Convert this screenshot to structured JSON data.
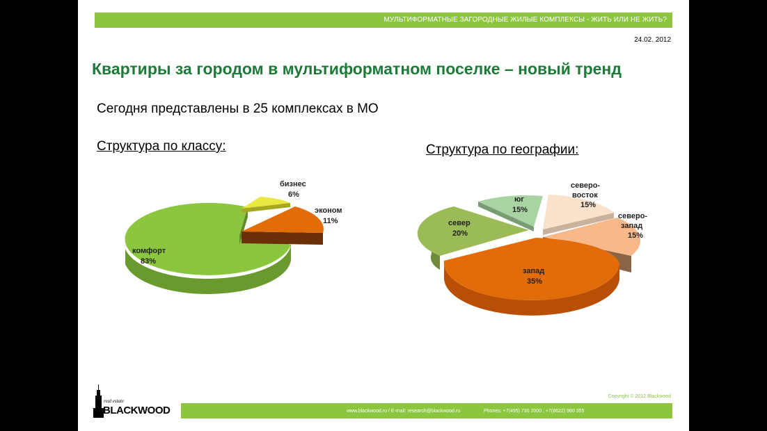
{
  "header": {
    "bar_text": "МУЛЬТИФОРМАТНЫЕ ЗАГОРОДНЫЕ ЖИЛЫЕ КОМПЛЕКСЫ  - ЖИТЬ ИЛИ НЕ ЖИТЬ?",
    "date": "24.02. 2012"
  },
  "title": "Квартиры за городом  в мультиформатном поселке – новый тренд",
  "subtitle": "Сегодня представлены в 25 комплексах в МО",
  "section_class": "Структура по классу:",
  "section_geo": "Структура по географии:",
  "chart_data": [
    {
      "type": "pie",
      "title": "Структура по классу:",
      "slices": [
        {
          "label": "комфорт",
          "value": 83,
          "value_label": "83%",
          "color": "#8cc63f"
        },
        {
          "label": "бизнес",
          "value": 6,
          "value_label": "6%",
          "color": "#e8e840"
        },
        {
          "label": "эконом",
          "value": 11,
          "value_label": "11%",
          "color": "#e36c0a"
        }
      ]
    },
    {
      "type": "pie",
      "title": "Структура по географии:",
      "slices": [
        {
          "label": "юг",
          "value": 15,
          "value_label": "15%",
          "color": "#a9d3a3"
        },
        {
          "label": "северо-восток",
          "value": 15,
          "value_label": "15%",
          "color": "#fbe2cb"
        },
        {
          "label": "северо-запад",
          "value": 15,
          "value_label": "15%",
          "color": "#f7b98a"
        },
        {
          "label": "запад",
          "value": 35,
          "value_label": "35%",
          "color": "#e36c0a"
        },
        {
          "label": "север",
          "value": 20,
          "value_label": "20%",
          "color": "#9bbb59"
        }
      ]
    }
  ],
  "labels": {
    "komfort": [
      "комфорт",
      "83%"
    ],
    "biznes": [
      "бизнес",
      "6%"
    ],
    "ekonom": [
      "эконом",
      "11%"
    ],
    "yug": [
      "юг",
      "15%"
    ],
    "sv": [
      "северо-",
      "восток",
      "15%"
    ],
    "sz": [
      "северо-",
      "запад",
      "15%"
    ],
    "zapad": [
      "запад",
      "35%"
    ],
    "sever": [
      "север",
      "20%"
    ]
  },
  "footer": {
    "copyright": "Copyright © 2012 Blackwood",
    "web": "www.blackwood.ru  /  E-mail: research@blackwood.ru",
    "phones": "Phones: +7(495) 730 2000 ;  +7(8622) 960 355",
    "logo_tagline": "real estate",
    "logo_name": "BLACKWOOD"
  },
  "colors": {
    "accent_green": "#8cc63f",
    "title_green": "#1d7a38"
  }
}
